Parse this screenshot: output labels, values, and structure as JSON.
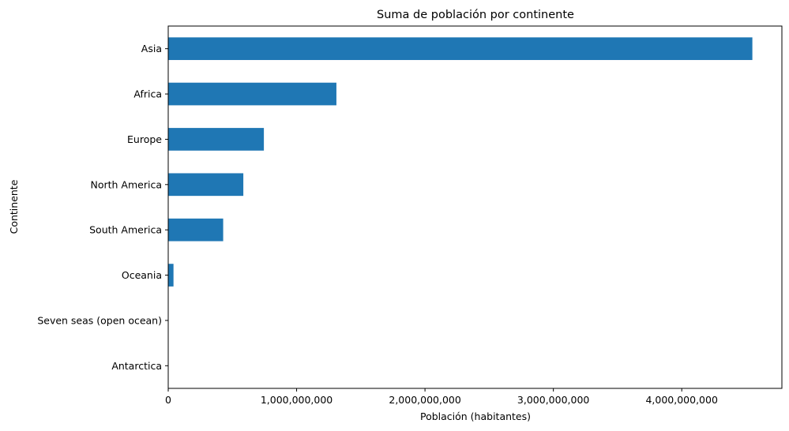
{
  "chart_data": {
    "type": "bar",
    "orientation": "horizontal",
    "title": "Suma de población por continente",
    "xlabel": "Población (habitantes)",
    "ylabel": "Continente",
    "categories": [
      "Asia",
      "Africa",
      "Europe",
      "North America",
      "South America",
      "Oceania",
      "Seven seas (open ocean)",
      "Antarctica"
    ],
    "values": [
      4550000000,
      1310000000,
      745000000,
      585000000,
      428000000,
      41000000,
      0,
      0
    ],
    "xlim": [
      0,
      4780000000
    ],
    "xticks": [
      0,
      1000000000,
      2000000000,
      3000000000,
      4000000000
    ],
    "xtick_labels": [
      "0",
      "1,000,000,000",
      "2,000,000,000",
      "3,000,000,000",
      "4,000,000,000"
    ],
    "bar_color": "#1f77b4",
    "grid": false,
    "legend": false
  }
}
